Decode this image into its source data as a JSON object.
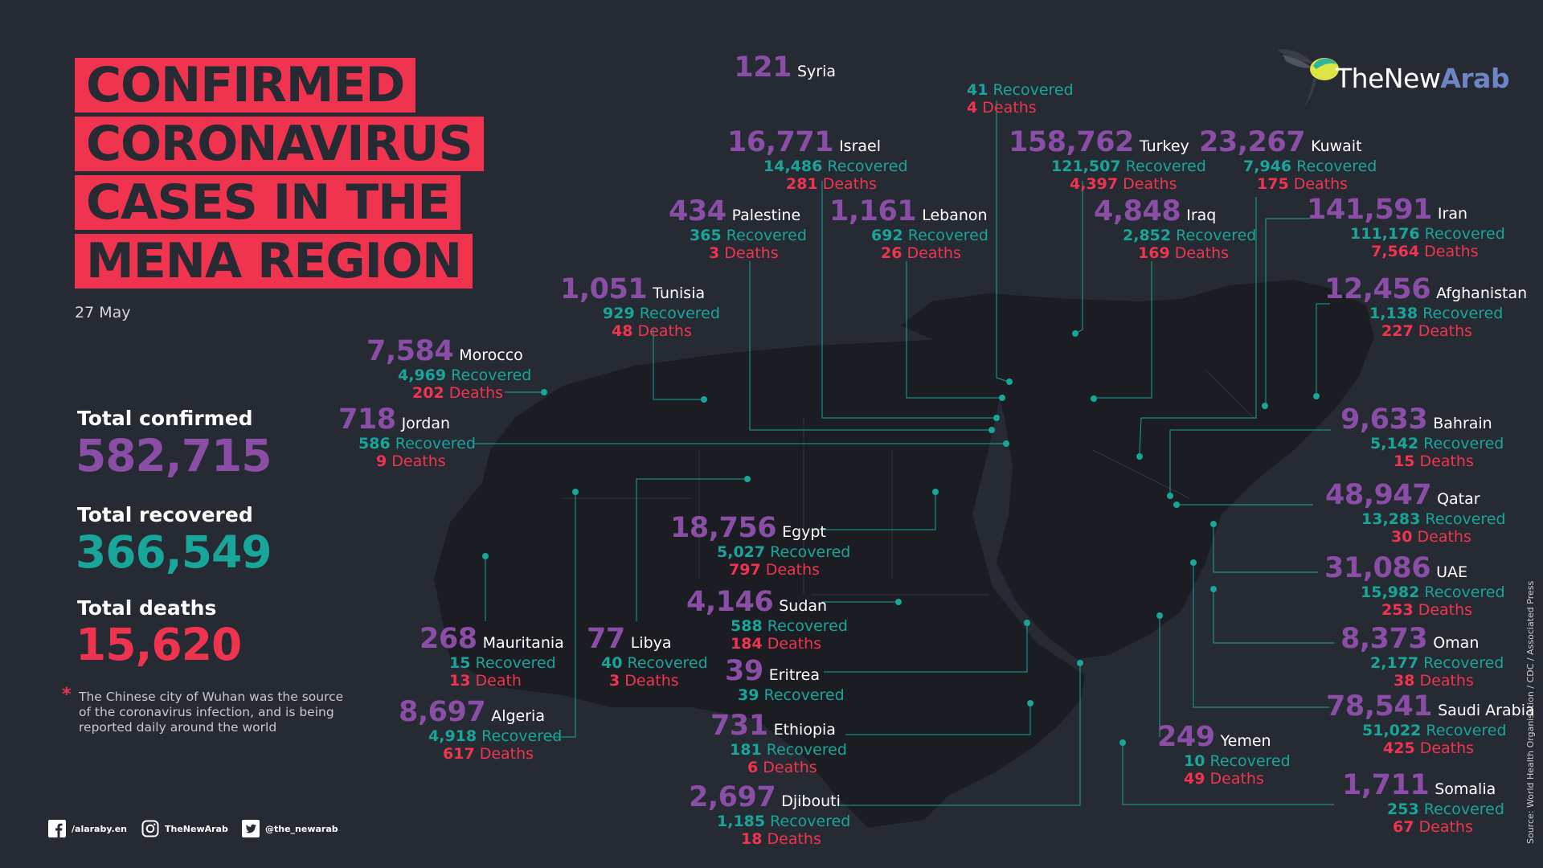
{
  "title_lines": [
    "CONFIRMED",
    "CORONAVIRUS",
    "CASES IN THE",
    "MENA REGION"
  ],
  "date": "27 May",
  "totals": {
    "confirmed_label": "Total confirmed",
    "confirmed": "582,715",
    "recovered_label": "Total recovered",
    "recovered": "366,549",
    "deaths_label": "Total deaths",
    "deaths": "15,620"
  },
  "note": "The Chinese city of Wuhan was the source of the coronavirus infection, and is being reported daily around the world",
  "logo": {
    "text_a": "TheNew",
    "text_b": "Arab"
  },
  "social": {
    "facebook": "/alaraby.en",
    "instagram": "TheNewArab",
    "twitter": "@the_newarab"
  },
  "source": "Source: World Health Organisation / CDC / Associated Press",
  "colors": {
    "background": "#262a33",
    "title_bg": "#f0344f",
    "confirmed": "#8b4ea6",
    "recovered": "#18a59a",
    "deaths": "#f0344f",
    "map": "#1b1d23",
    "leader": "#18a59a"
  },
  "countries": [
    {
      "name": "Syria",
      "confirmed": "121",
      "recovered": "41",
      "recovered_word": "Recovered",
      "deaths": "4",
      "deaths_word": "Deaths"
    },
    {
      "name": "Israel",
      "confirmed": "16,771",
      "recovered": "14,486",
      "recovered_word": "Recovered",
      "deaths": "281",
      "deaths_word": "Deaths"
    },
    {
      "name": "Turkey",
      "confirmed": "158,762",
      "recovered": "121,507",
      "recovered_word": "Recovered",
      "deaths": "4,397",
      "deaths_word": "Deaths"
    },
    {
      "name": "Kuwait",
      "confirmed": "23,267",
      "recovered": "7,946",
      "recovered_word": "Recovered",
      "deaths": "175",
      "deaths_word": "Deaths"
    },
    {
      "name": "Palestine",
      "confirmed": "434",
      "recovered": "365",
      "recovered_word": "Recovered",
      "deaths": "3",
      "deaths_word": "Deaths"
    },
    {
      "name": "Lebanon",
      "confirmed": "1,161",
      "recovered": "692",
      "recovered_word": "Recovered",
      "deaths": "26",
      "deaths_word": "Deaths"
    },
    {
      "name": "Iraq",
      "confirmed": "4,848",
      "recovered": "2,852",
      "recovered_word": "Recovered",
      "deaths": "169",
      "deaths_word": "Deaths"
    },
    {
      "name": "Iran",
      "confirmed": "141,591",
      "recovered": "111,176",
      "recovered_word": "Recovered",
      "deaths": "7,564",
      "deaths_word": "Deaths"
    },
    {
      "name": "Tunisia",
      "confirmed": "1,051",
      "recovered": "929",
      "recovered_word": "Recovered",
      "deaths": "48",
      "deaths_word": "Deaths"
    },
    {
      "name": "Afghanistan",
      "confirmed": "12,456",
      "recovered": "1,138",
      "recovered_word": "Recovered",
      "deaths": "227",
      "deaths_word": "Deaths"
    },
    {
      "name": "Morocco",
      "confirmed": "7,584",
      "recovered": "4,969",
      "recovered_word": "Recovered",
      "deaths": "202",
      "deaths_word": "Deaths"
    },
    {
      "name": "Jordan",
      "confirmed": "718",
      "recovered": "586",
      "recovered_word": "Recovered",
      "deaths": "9",
      "deaths_word": "Deaths"
    },
    {
      "name": "Bahrain",
      "confirmed": "9,633",
      "recovered": "5,142",
      "recovered_word": "Recovered",
      "deaths": "15",
      "deaths_word": "Deaths"
    },
    {
      "name": "Qatar",
      "confirmed": "48,947",
      "recovered": "13,283",
      "recovered_word": "Recovered",
      "deaths": "30",
      "deaths_word": "Deaths"
    },
    {
      "name": "Egypt",
      "confirmed": "18,756",
      "recovered": "5,027",
      "recovered_word": "Recovered",
      "deaths": "797",
      "deaths_word": "Deaths"
    },
    {
      "name": "UAE",
      "confirmed": "31,086",
      "recovered": "15,982",
      "recovered_word": "Recovered",
      "deaths": "253",
      "deaths_word": "Deaths"
    },
    {
      "name": "Sudan",
      "confirmed": "4,146",
      "recovered": "588",
      "recovered_word": "Recovered",
      "deaths": "184",
      "deaths_word": "Deaths"
    },
    {
      "name": "Mauritania",
      "confirmed": "268",
      "recovered": "15",
      "recovered_word": "Recovered",
      "deaths": "13",
      "deaths_word": "Death"
    },
    {
      "name": "Libya",
      "confirmed": "77",
      "recovered": "40",
      "recovered_word": "Recovered",
      "deaths": "3",
      "deaths_word": "Deaths"
    },
    {
      "name": "Oman",
      "confirmed": "8,373",
      "recovered": "2,177",
      "recovered_word": "Recovered",
      "deaths": "38",
      "deaths_word": "Deaths"
    },
    {
      "name": "Eritrea",
      "confirmed": "39",
      "recovered": "39",
      "recovered_word": "Recovered",
      "deaths": "",
      "deaths_word": ""
    },
    {
      "name": "Saudi Arabia",
      "confirmed": "78,541",
      "recovered": "51,022",
      "recovered_word": "Recovered",
      "deaths": "425",
      "deaths_word": "Deaths"
    },
    {
      "name": "Algeria",
      "confirmed": "8,697",
      "recovered": "4,918",
      "recovered_word": "Recovered",
      "deaths": "617",
      "deaths_word": "Deaths"
    },
    {
      "name": "Ethiopia",
      "confirmed": "731",
      "recovered": "181",
      "recovered_word": "Recovered",
      "deaths": "6",
      "deaths_word": "Deaths"
    },
    {
      "name": "Yemen",
      "confirmed": "249",
      "recovered": "10",
      "recovered_word": "Recovered",
      "deaths": "49",
      "deaths_word": "Deaths"
    },
    {
      "name": "Djibouti",
      "confirmed": "2,697",
      "recovered": "1,185",
      "recovered_word": "Recovered",
      "deaths": "18",
      "deaths_word": "Deaths"
    },
    {
      "name": "Somalia",
      "confirmed": "1,711",
      "recovered": "253",
      "recovered_word": "Recovered",
      "deaths": "67",
      "deaths_word": "Deaths"
    }
  ]
}
